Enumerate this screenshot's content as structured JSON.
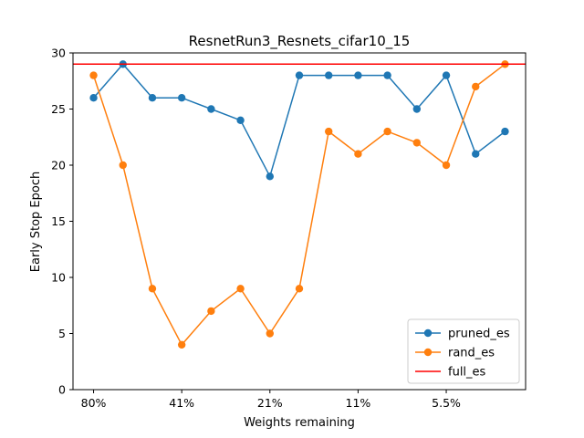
{
  "chart_data": {
    "type": "line",
    "title": "ResnetRun3_Resnets_cifar10_15",
    "xlabel": "Weights remaining",
    "ylabel": "Early Stop Epoch",
    "ylim": [
      0,
      30
    ],
    "yticks": [
      0,
      5,
      10,
      15,
      20,
      25,
      30
    ],
    "x": [
      0,
      1,
      2,
      3,
      4,
      5,
      6,
      7,
      8,
      9,
      10,
      11,
      12,
      13,
      14
    ],
    "xticks": [
      {
        "pos": 0,
        "label": "80%"
      },
      {
        "pos": 3,
        "label": "41%"
      },
      {
        "pos": 6,
        "label": "21%"
      },
      {
        "pos": 9,
        "label": "11%"
      },
      {
        "pos": 12,
        "label": "5.5%"
      }
    ],
    "series": [
      {
        "name": "pruned_es",
        "color": "#1f77b4",
        "marker": "circle",
        "values": [
          26,
          29,
          26,
          26,
          25,
          24,
          19,
          28,
          28,
          28,
          28,
          25,
          28,
          21,
          23
        ]
      },
      {
        "name": "rand_es",
        "color": "#ff7f0e",
        "marker": "circle",
        "values": [
          28,
          20,
          9,
          4,
          7,
          9,
          5,
          9,
          23,
          21,
          23,
          22,
          20,
          27,
          29
        ]
      }
    ],
    "hlines": [
      {
        "name": "full_es",
        "color": "#ff0000",
        "value": 29
      }
    ],
    "legend": "lower-right",
    "grid": false
  }
}
